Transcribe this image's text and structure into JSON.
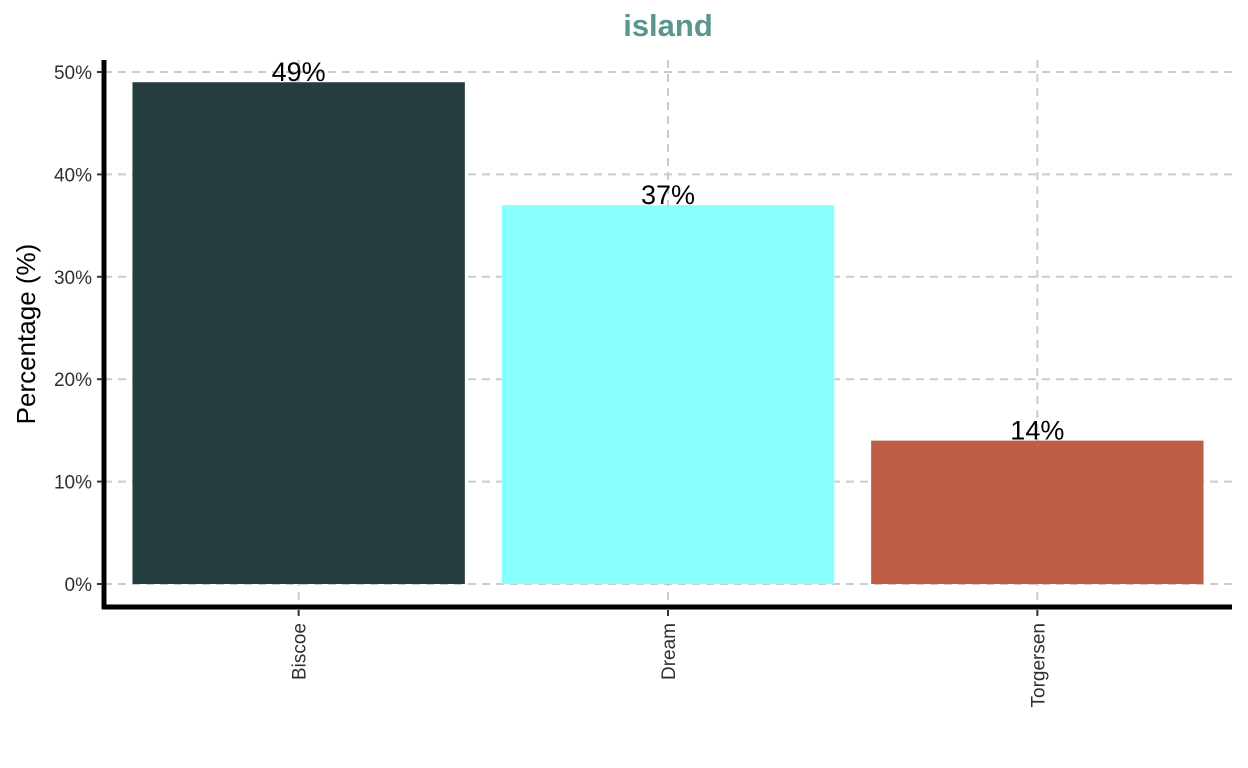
{
  "chart_data": {
    "type": "bar",
    "title": "island",
    "xlabel": "",
    "ylabel": "Percentage (%)",
    "categories": [
      "Biscoe",
      "Dream",
      "Torgersen"
    ],
    "values": [
      49,
      37,
      14
    ],
    "value_labels": [
      "49%",
      "37%",
      "14%"
    ],
    "ylim": [
      0,
      50
    ],
    "yticks": [
      0,
      10,
      20,
      30,
      40,
      50
    ],
    "ytick_labels": [
      "0%",
      "10%",
      "20%",
      "30%",
      "40%",
      "50%"
    ],
    "grid": true,
    "legend": "none",
    "colors": [
      "#253d3e",
      "#89fffe",
      "#be5e45"
    ],
    "title_color": "#5a9590"
  }
}
